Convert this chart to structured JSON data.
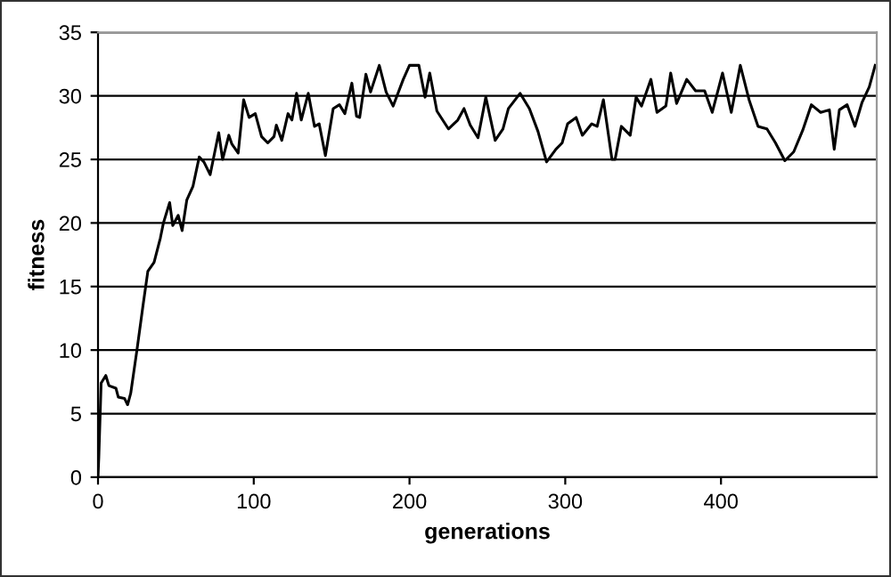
{
  "chart_data": {
    "type": "line",
    "xlabel": "generations",
    "ylabel": "fitness",
    "xlim": [
      0,
      500
    ],
    "xticks": [
      0,
      100,
      200,
      300,
      400
    ],
    "ylim": [
      0,
      35
    ],
    "yticks": [
      0,
      5,
      10,
      15,
      20,
      25,
      30,
      35
    ],
    "grid": "y",
    "marker": "none",
    "line_style": "solid",
    "series": [
      {
        "color": "#000000",
        "x": [
          0,
          0.5,
          2,
          5,
          7,
          11.5,
          13,
          17,
          19,
          21,
          25,
          29,
          32,
          36,
          40,
          42,
          46,
          48,
          51.5,
          54,
          57,
          61,
          65,
          68,
          72,
          74,
          77.5,
          80,
          84,
          86,
          90,
          93.5,
          97,
          101,
          105,
          109,
          113,
          114.5,
          118,
          122,
          124.5,
          127.5,
          130.5,
          135,
          139,
          142,
          146,
          151,
          155,
          158.5,
          163,
          166,
          168,
          172,
          175,
          180.6,
          185,
          189.5,
          196,
          200,
          206,
          210,
          213,
          217.6,
          225,
          231,
          235,
          239,
          244,
          249,
          255,
          260,
          263.5,
          271,
          277,
          282.5,
          288,
          294,
          298,
          301.5,
          307,
          311,
          317,
          320.5,
          324.5,
          330,
          332,
          336,
          341.7,
          345.5,
          349,
          355,
          358.9,
          364.6,
          367.7,
          371.5,
          378,
          383.7,
          389.5,
          394.4,
          401,
          406.6,
          412.4,
          418,
          423.8,
          429.5,
          435,
          441,
          446.7,
          452.5,
          458,
          464,
          469.6,
          472.7,
          476,
          481,
          486,
          490.6,
          495.2,
          499
        ],
        "values": [
          0.1,
          1.5,
          7.4,
          8.0,
          7.2,
          7.0,
          6.3,
          6.2,
          5.7,
          6.6,
          10,
          13.6,
          16.2,
          16.9,
          18.8,
          20,
          21.6,
          19.8,
          20.6,
          19.4,
          21.8,
          22.9,
          25.2,
          24.8,
          23.8,
          25,
          27.1,
          25,
          26.9,
          26.2,
          25.5,
          29.7,
          28.3,
          28.6,
          26.8,
          26.3,
          26.8,
          27.7,
          26.5,
          28.6,
          28.1,
          30.2,
          28.1,
          30.2,
          27.6,
          27.8,
          25.3,
          29,
          29.3,
          28.6,
          31,
          28.4,
          28.3,
          31.7,
          30.3,
          32.4,
          30.3,
          29.2,
          31.3,
          32.4,
          32.4,
          29.9,
          31.8,
          28.8,
          27.4,
          28.1,
          29,
          27.7,
          26.7,
          29.9,
          26.5,
          27.4,
          29,
          30.2,
          29,
          27.2,
          24.8,
          25.8,
          26.3,
          27.8,
          28.3,
          26.9,
          27.8,
          27.6,
          29.7,
          25,
          25.0,
          27.6,
          26.9,
          29.9,
          29.2,
          31.3,
          28.7,
          29.2,
          31.8,
          29.4,
          31.3,
          30.4,
          30.4,
          28.7,
          31.8,
          28.7,
          32.4,
          29.7,
          27.6,
          27.4,
          26.3,
          24.9,
          25.6,
          27.3,
          29.3,
          28.7,
          28.9,
          25.8,
          28.9,
          29.3,
          27.6,
          29.5,
          30.7,
          32.4
        ]
      }
    ]
  }
}
